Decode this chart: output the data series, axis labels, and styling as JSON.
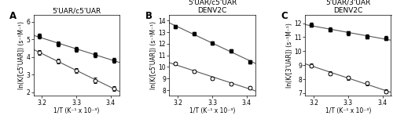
{
  "panels": [
    {
      "label": "A",
      "title1": "5'UAR/c5'UAR",
      "title2": "",
      "ylabel": "ln(K/[c5'UAR]) (s⁻¹M⁻¹)",
      "xlabel": "1/T (K⁻¹ x 10⁻³)",
      "xlim": [
        3.175,
        3.425
      ],
      "xticks": [
        3.2,
        3.3,
        3.4
      ],
      "ylim": [
        1.8,
        6.4
      ],
      "yticks": [
        2,
        3,
        4,
        5,
        6
      ],
      "solid_x": [
        3.193,
        3.247,
        3.3,
        3.355,
        3.41
      ],
      "solid_y": [
        5.18,
        4.74,
        4.44,
        4.13,
        3.82
      ],
      "open_x": [
        3.193,
        3.247,
        3.3,
        3.355,
        3.41
      ],
      "open_y": [
        4.25,
        3.78,
        3.25,
        2.68,
        2.22
      ]
    },
    {
      "label": "B",
      "title1": "5'UAR/c5'UAR",
      "title2": "DENV2C",
      "ylabel": "ln(K/[c5'UAR]) (s⁻¹M⁻¹)",
      "xlabel": "1/T (K⁻¹ x 10⁻³)",
      "xlim": [
        3.175,
        3.425
      ],
      "xticks": [
        3.2,
        3.3,
        3.4
      ],
      "ylim": [
        7.5,
        14.5
      ],
      "yticks": [
        8,
        9,
        10,
        11,
        12,
        13,
        14
      ],
      "solid_x": [
        3.193,
        3.247,
        3.3,
        3.355,
        3.41
      ],
      "solid_y": [
        13.48,
        12.85,
        12.08,
        11.4,
        10.42
      ],
      "open_x": [
        3.193,
        3.247,
        3.3,
        3.355,
        3.41
      ],
      "open_y": [
        10.32,
        9.62,
        9.02,
        8.55,
        8.22
      ]
    },
    {
      "label": "C",
      "title1": "5'UAR/3'UAR",
      "title2": "DENV2C",
      "ylabel": "ln(K/[3'UAR]) (s⁻¹M⁻¹)",
      "xlabel": "1/T (K⁻¹ x 10⁻³)",
      "xlim": [
        3.175,
        3.425
      ],
      "xticks": [
        3.2,
        3.3,
        3.4
      ],
      "ylim": [
        6.8,
        12.6
      ],
      "yticks": [
        7,
        8,
        9,
        10,
        11,
        12
      ],
      "solid_x": [
        3.193,
        3.247,
        3.3,
        3.355,
        3.41
      ],
      "solid_y": [
        11.88,
        11.55,
        11.28,
        11.05,
        10.92
      ],
      "open_x": [
        3.193,
        3.247,
        3.3,
        3.355,
        3.41
      ],
      "open_y": [
        8.98,
        8.42,
        8.1,
        7.72,
        7.12
      ]
    }
  ],
  "marker_size": 3.5,
  "line_color": "#555555",
  "marker_color": "black",
  "errorbar_size": 0.14,
  "font_size_title": 6.5,
  "font_size_label": 5.5,
  "font_size_tick": 5.5,
  "font_size_panel_label": 8.5
}
